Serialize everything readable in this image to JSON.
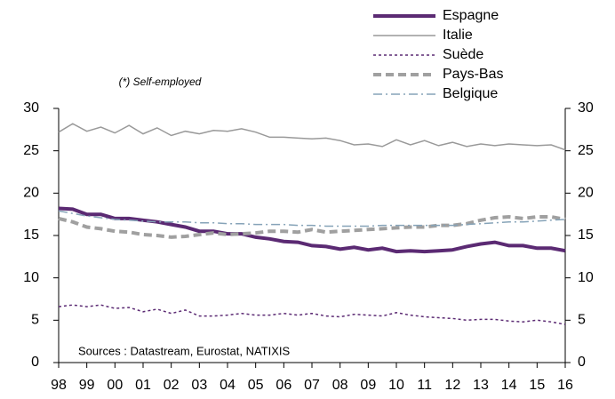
{
  "chart_data": {
    "type": "line",
    "annotations": [
      "(*) Self-employed",
      "Sources : Datastream, Eurostat, NATIXIS"
    ],
    "x": [
      1998,
      1998.5,
      1999,
      1999.5,
      2000,
      2000.5,
      2001,
      2001.5,
      2002,
      2002.5,
      2003,
      2003.5,
      2004,
      2004.5,
      2005,
      2005.5,
      2006,
      2006.5,
      2007,
      2007.5,
      2008,
      2008.5,
      2009,
      2009.5,
      2010,
      2010.5,
      2011,
      2011.5,
      2012,
      2012.5,
      2013,
      2013.5,
      2014,
      2014.5,
      2015,
      2015.5,
      2016
    ],
    "series": [
      {
        "name": "Espagne",
        "color": "#5b2a73",
        "linestyle": "solid",
        "bold": true,
        "values": [
          18.2,
          18.1,
          17.5,
          17.5,
          17.0,
          17.0,
          16.8,
          16.6,
          16.3,
          16.0,
          15.5,
          15.5,
          15.2,
          15.2,
          14.8,
          14.6,
          14.3,
          14.2,
          13.8,
          13.7,
          13.4,
          13.6,
          13.3,
          13.5,
          13.1,
          13.2,
          13.1,
          13.2,
          13.3,
          13.7,
          14.0,
          14.2,
          13.8,
          13.8,
          13.5,
          13.5,
          13.2
        ]
      },
      {
        "name": "Italie",
        "color": "#999999",
        "linestyle": "solid",
        "bold": false,
        "values": [
          27.2,
          28.2,
          27.3,
          27.8,
          27.1,
          28.0,
          27.0,
          27.7,
          26.8,
          27.3,
          27.0,
          27.4,
          27.3,
          27.6,
          27.2,
          26.6,
          26.6,
          26.5,
          26.4,
          26.5,
          26.2,
          25.7,
          25.8,
          25.5,
          26.3,
          25.7,
          26.2,
          25.6,
          26.0,
          25.5,
          25.8,
          25.6,
          25.8,
          25.7,
          25.6,
          25.7,
          25.1
        ]
      },
      {
        "name": "Suède",
        "color": "#5b2a73",
        "linestyle": "dotted",
        "bold": false,
        "values": [
          6.6,
          6.8,
          6.6,
          6.8,
          6.4,
          6.5,
          6.0,
          6.3,
          5.8,
          6.2,
          5.5,
          5.5,
          5.6,
          5.8,
          5.6,
          5.6,
          5.8,
          5.6,
          5.8,
          5.5,
          5.4,
          5.7,
          5.6,
          5.5,
          5.9,
          5.6,
          5.4,
          5.3,
          5.2,
          5.0,
          5.1,
          5.1,
          4.9,
          4.8,
          5.0,
          4.8,
          4.5
        ]
      },
      {
        "name": "Pays-Bas",
        "color": "#a0a0a0",
        "linestyle": "dashed",
        "bold": true,
        "values": [
          17.0,
          16.6,
          16.0,
          15.8,
          15.5,
          15.4,
          15.1,
          15.0,
          14.8,
          14.9,
          15.1,
          15.3,
          15.1,
          15.2,
          15.3,
          15.5,
          15.5,
          15.4,
          15.7,
          15.4,
          15.5,
          15.6,
          15.7,
          15.8,
          15.9,
          16.0,
          16.0,
          16.2,
          16.2,
          16.4,
          16.8,
          17.1,
          17.2,
          17.0,
          17.2,
          17.2,
          16.9
        ]
      },
      {
        "name": "Belgique",
        "color": "#86a3b8",
        "linestyle": "dashdot",
        "bold": false,
        "values": [
          17.9,
          17.6,
          17.3,
          17.1,
          16.9,
          16.8,
          16.7,
          16.6,
          16.6,
          16.6,
          16.5,
          16.5,
          16.4,
          16.4,
          16.3,
          16.3,
          16.3,
          16.2,
          16.2,
          16.1,
          16.1,
          16.1,
          16.1,
          16.2,
          16.2,
          16.2,
          16.2,
          16.2,
          16.2,
          16.3,
          16.4,
          16.5,
          16.6,
          16.6,
          16.7,
          16.8,
          16.9
        ]
      }
    ],
    "xlim": [
      1998,
      2016
    ],
    "xticks": [
      {
        "value": 1998,
        "label": "98"
      },
      {
        "value": 1999,
        "label": "99"
      },
      {
        "value": 2000,
        "label": "00"
      },
      {
        "value": 2001,
        "label": "01"
      },
      {
        "value": 2002,
        "label": "02"
      },
      {
        "value": 2003,
        "label": "03"
      },
      {
        "value": 2004,
        "label": "04"
      },
      {
        "value": 2005,
        "label": "05"
      },
      {
        "value": 2006,
        "label": "06"
      },
      {
        "value": 2007,
        "label": "07"
      },
      {
        "value": 2008,
        "label": "08"
      },
      {
        "value": 2009,
        "label": "09"
      },
      {
        "value": 2010,
        "label": "10"
      },
      {
        "value": 2011,
        "label": "11"
      },
      {
        "value": 2012,
        "label": "12"
      },
      {
        "value": 2013,
        "label": "13"
      },
      {
        "value": 2014,
        "label": "14"
      },
      {
        "value": 2015,
        "label": "15"
      },
      {
        "value": 2016,
        "label": "16"
      }
    ],
    "ylim": [
      0,
      30
    ],
    "yticks": [
      0,
      5,
      10,
      15,
      20,
      25,
      30
    ],
    "y2lim": [
      0,
      30
    ],
    "y2ticks": [
      0,
      5,
      10,
      15,
      20,
      25,
      30
    ],
    "grid": false,
    "legend": "top-right"
  }
}
